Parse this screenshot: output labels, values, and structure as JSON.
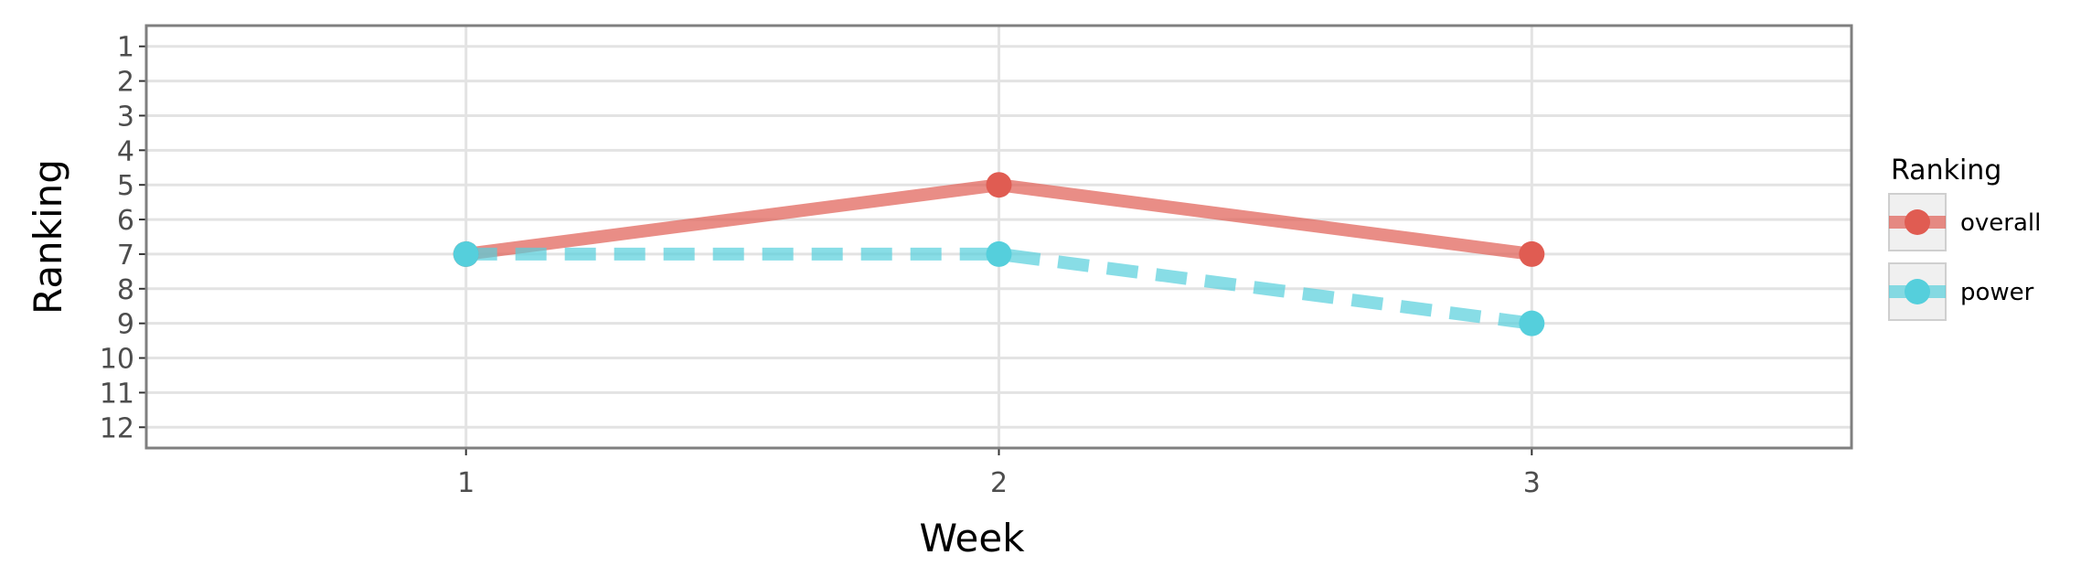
{
  "chart_data": {
    "type": "line",
    "xlabel": "Week",
    "ylabel": "Ranking",
    "x": [
      1,
      2,
      3
    ],
    "x_ticks": [
      "1",
      "2",
      "3"
    ],
    "xlim": [
      0.4,
      3.6
    ],
    "y_ticks": [
      "1",
      "2",
      "3",
      "4",
      "5",
      "6",
      "7",
      "8",
      "9",
      "10",
      "11",
      "12"
    ],
    "ylim": [
      12.6,
      0.4
    ],
    "y_reversed": true,
    "grid": true,
    "legend": {
      "title": "Ranking",
      "placement": "right"
    },
    "series": [
      {
        "name": "overall",
        "values": [
          7,
          5,
          7
        ],
        "color": "#e05c52",
        "line_style": "solid"
      },
      {
        "name": "power",
        "values": [
          7,
          7,
          9
        ],
        "color": "#55cfdc",
        "line_style": "dashed"
      }
    ]
  }
}
